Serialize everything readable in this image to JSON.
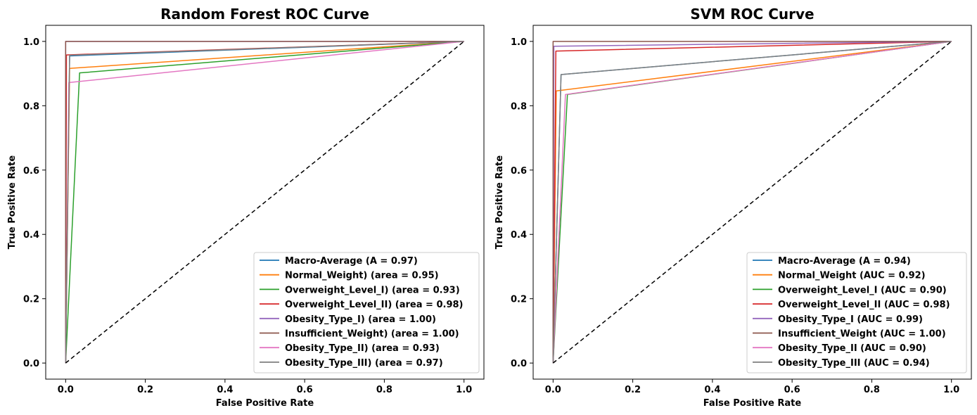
{
  "chart_data": [
    {
      "type": "line",
      "title": "Random Forest ROC Curve",
      "xlabel": "False Positive Rate",
      "ylabel": "True Positive Rate",
      "xlim": [
        -0.05,
        1.05
      ],
      "ylim": [
        -0.05,
        1.05
      ],
      "xticks": [
        "0.0",
        "0.2",
        "0.4",
        "0.6",
        "0.8",
        "1.0"
      ],
      "yticks": [
        "0.0",
        "0.2",
        "0.4",
        "0.6",
        "0.8",
        "1.0"
      ],
      "legend_position": "lower-right",
      "grid": false,
      "diagonal": {
        "x": [
          0,
          1
        ],
        "y": [
          0,
          1
        ],
        "style": "dashed",
        "color": "#000000"
      },
      "series": [
        {
          "name": "Macro-Average (A = 0.97)",
          "color": "#1f77b4",
          "x": [
            0,
            0.01,
            1
          ],
          "y": [
            0,
            0.955,
            1
          ]
        },
        {
          "name": "Normal_Weight) (area = 0.95)",
          "color": "#ff7f0e",
          "x": [
            0,
            0.01,
            1
          ],
          "y": [
            0,
            0.916,
            1
          ]
        },
        {
          "name": "Overweight_Level_I) (area = 0.93)",
          "color": "#2ca02c",
          "x": [
            0,
            0.035,
            1
          ],
          "y": [
            0,
            0.902,
            1
          ]
        },
        {
          "name": "Overweight_Level_II) (area = 0.98)",
          "color": "#d62728",
          "x": [
            0,
            0.002,
            1
          ],
          "y": [
            0,
            0.958,
            1
          ]
        },
        {
          "name": "Obesity_Type_I) (area = 1.00)",
          "color": "#9467bd",
          "x": [
            0,
            0,
            1
          ],
          "y": [
            0,
            1.0,
            1
          ]
        },
        {
          "name": "Insufficient_Weight) (area = 1.00)",
          "color": "#8c564b",
          "x": [
            0,
            0,
            1
          ],
          "y": [
            0,
            1.0,
            1
          ]
        },
        {
          "name": "Obesity_Type_II) (area = 0.93)",
          "color": "#e377c2",
          "x": [
            0,
            0.008,
            1
          ],
          "y": [
            0,
            0.872,
            1
          ]
        },
        {
          "name": "Obesity_Type_III) (area = 0.97)",
          "color": "#7f7f7f",
          "x": [
            0,
            0.01,
            1
          ],
          "y": [
            0,
            0.957,
            1
          ]
        }
      ]
    },
    {
      "type": "line",
      "title": "SVM ROC Curve",
      "xlabel": "False Positive Rate",
      "ylabel": "True Positive Rate",
      "xlim": [
        -0.05,
        1.05
      ],
      "ylim": [
        -0.05,
        1.05
      ],
      "xticks": [
        "0.0",
        "0.2",
        "0.4",
        "0.6",
        "0.8",
        "1.0"
      ],
      "yticks": [
        "0.0",
        "0.2",
        "0.4",
        "0.6",
        "0.8",
        "1.0"
      ],
      "legend_position": "lower-right",
      "grid": false,
      "diagonal": {
        "x": [
          0,
          1
        ],
        "y": [
          0,
          1
        ],
        "style": "dashed",
        "color": "#000000"
      },
      "series": [
        {
          "name": "Macro-Average (A = 0.94)",
          "color": "#1f77b4",
          "x": [
            0,
            0.02,
            1
          ],
          "y": [
            0,
            0.897,
            1
          ]
        },
        {
          "name": "Normal_Weight (AUC = 0.92)",
          "color": "#ff7f0e",
          "x": [
            0,
            0.008,
            1
          ],
          "y": [
            0,
            0.846,
            1
          ]
        },
        {
          "name": "Overweight_Level_I (AUC = 0.90)",
          "color": "#2ca02c",
          "x": [
            0,
            0.036,
            1
          ],
          "y": [
            0,
            0.835,
            1
          ]
        },
        {
          "name": "Overweight_Level_II (AUC = 0.98)",
          "color": "#d62728",
          "x": [
            0,
            0.007,
            1
          ],
          "y": [
            0,
            0.97,
            1
          ]
        },
        {
          "name": "Obesity_Type_I (AUC = 0.99)",
          "color": "#9467bd",
          "x": [
            0,
            0.002,
            1
          ],
          "y": [
            0,
            0.985,
            1
          ]
        },
        {
          "name": "Insufficient_Weight (AUC = 1.00)",
          "color": "#8c564b",
          "x": [
            0,
            0,
            1
          ],
          "y": [
            0,
            1.0,
            1
          ]
        },
        {
          "name": "Obesity_Type_II (AUC = 0.90)",
          "color": "#e377c2",
          "x": [
            0,
            0.031,
            1
          ],
          "y": [
            0,
            0.835,
            1
          ]
        },
        {
          "name": "Obesity_Type_III (AUC = 0.94)",
          "color": "#7f7f7f",
          "x": [
            0,
            0.02,
            1
          ],
          "y": [
            0,
            0.897,
            1
          ]
        }
      ]
    }
  ]
}
